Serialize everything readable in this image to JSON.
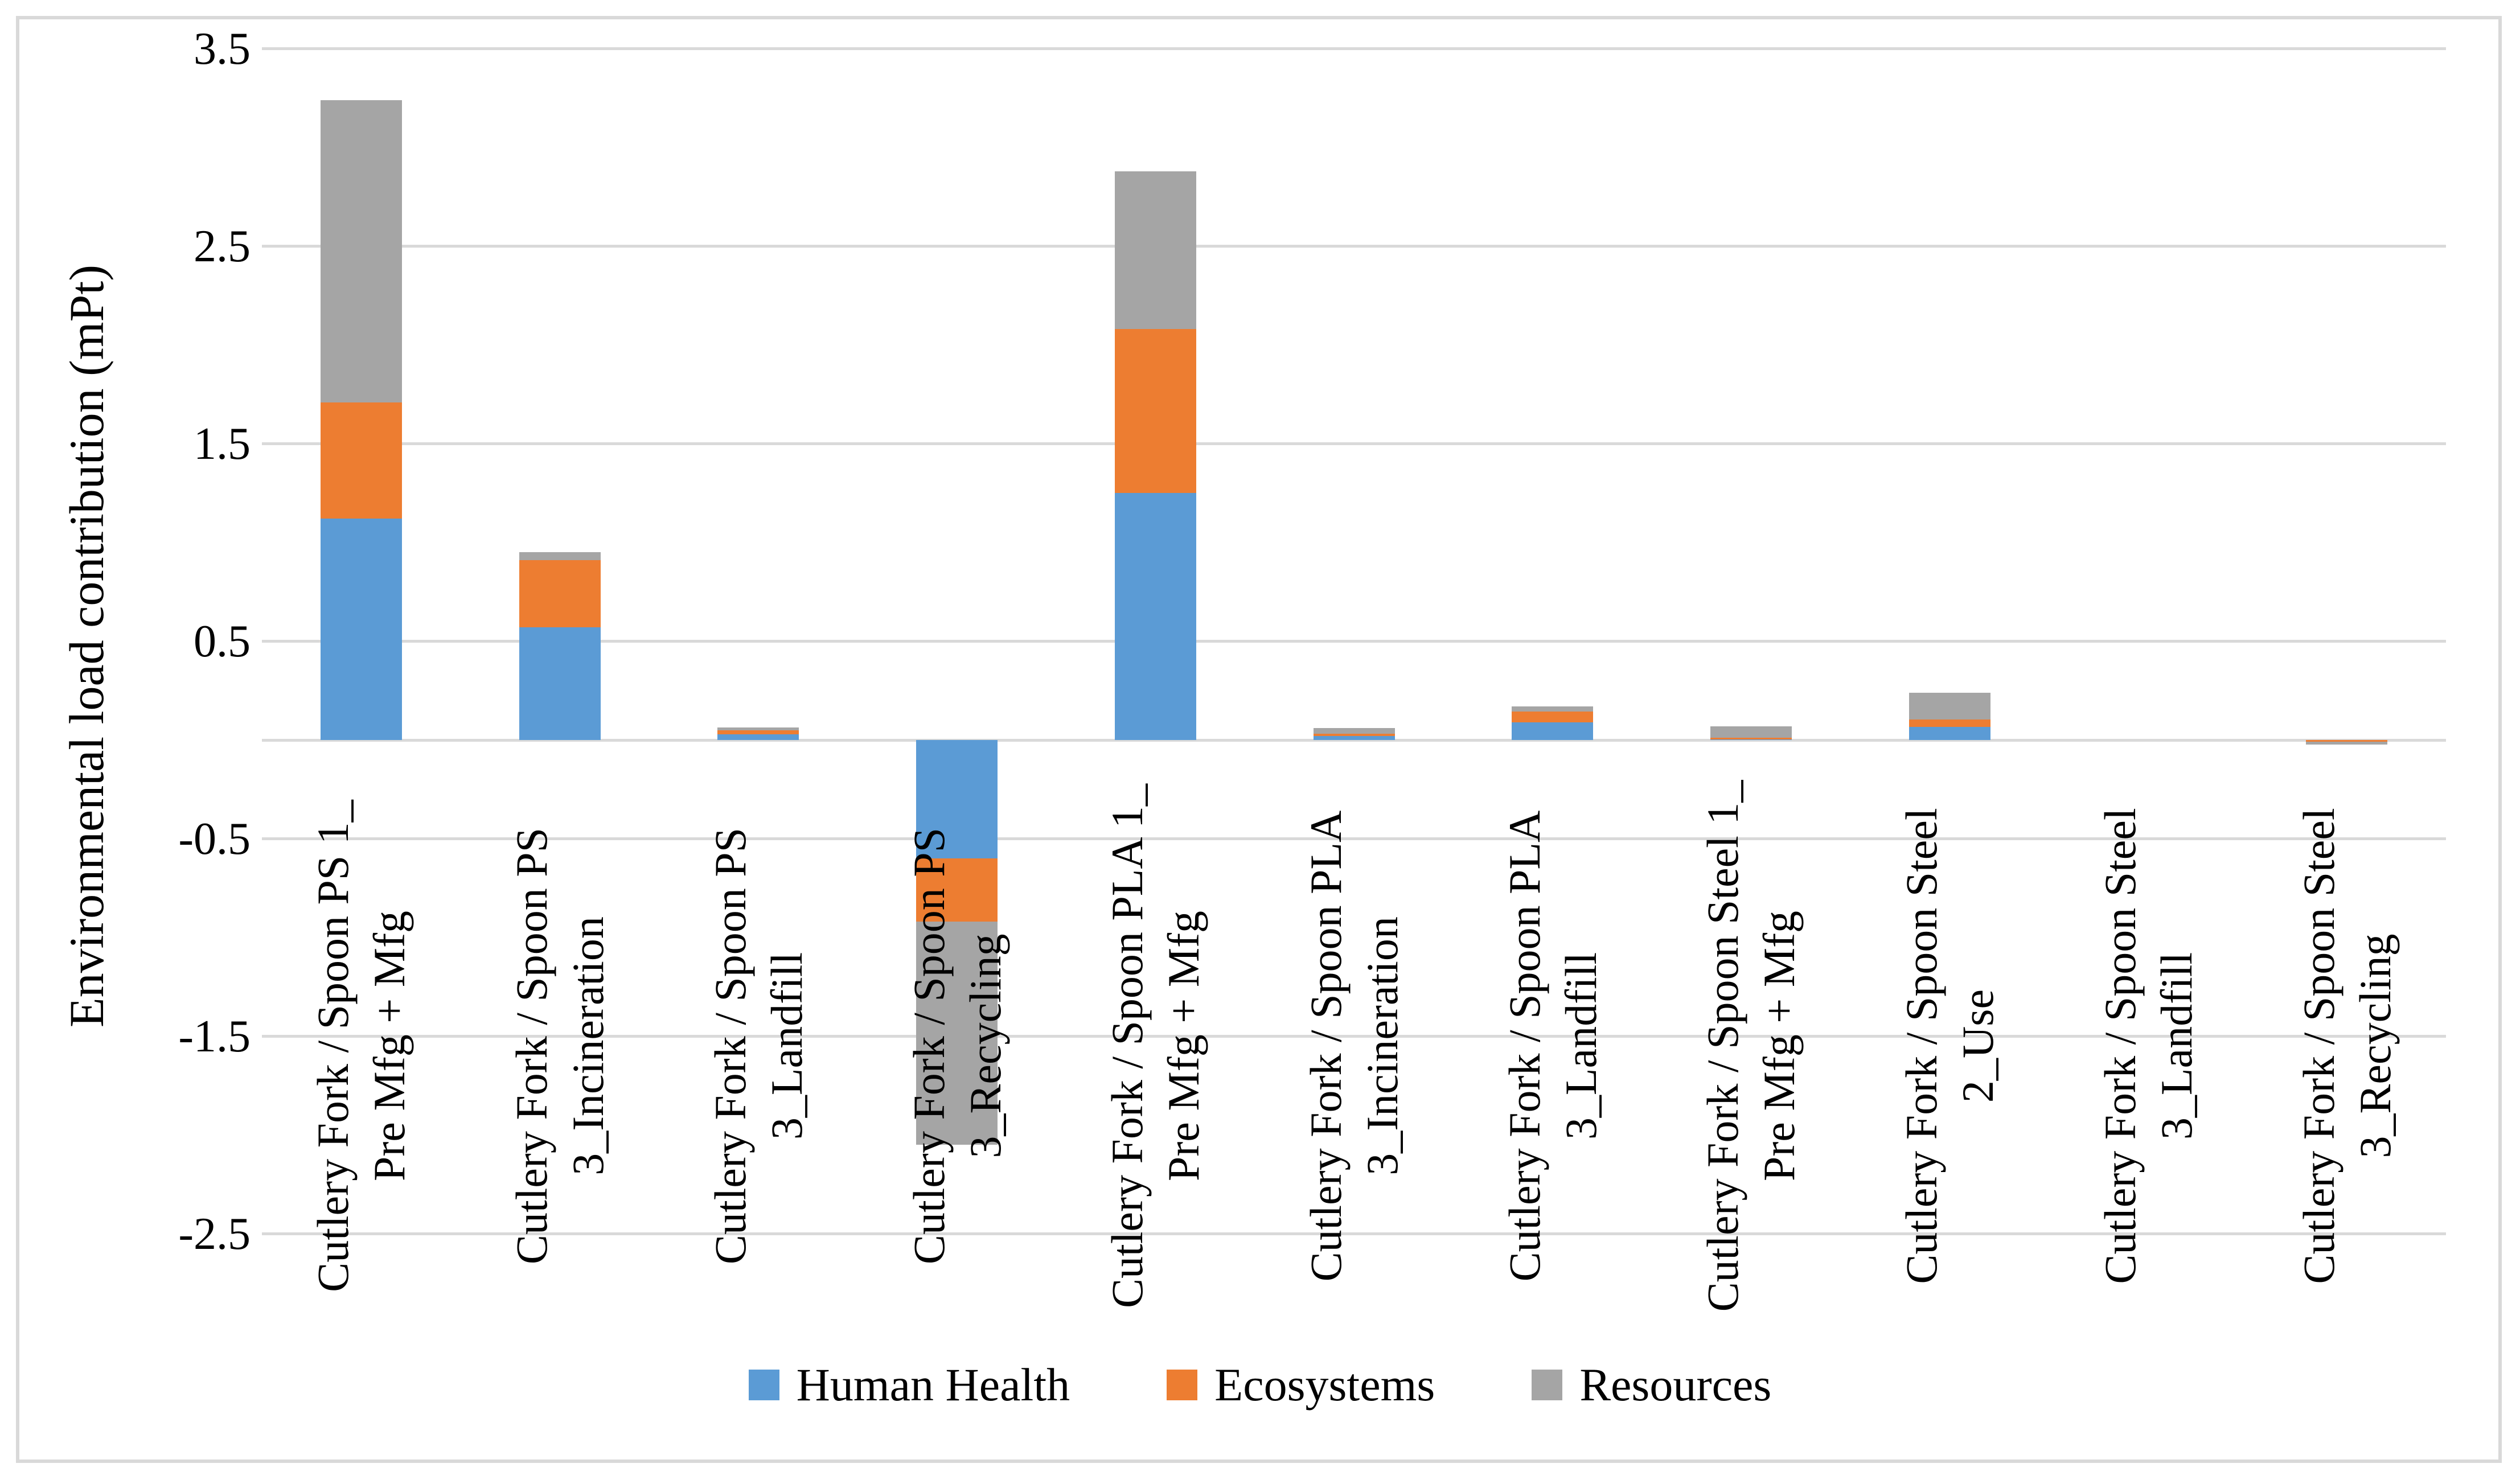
{
  "chart_data": {
    "type": "bar",
    "stacked": true,
    "title": "",
    "xlabel": "",
    "ylabel": "Environmental load contribution (mPt)",
    "ylim": [
      -2.5,
      3.5
    ],
    "yticks": [
      {
        "value": 3.5,
        "label": "3.5"
      },
      {
        "value": 2.5,
        "label": "2.5"
      },
      {
        "value": 1.5,
        "label": "1.5"
      },
      {
        "value": 0.5,
        "label": "0.5"
      },
      {
        "value": -0.5,
        "label": "-0.5"
      },
      {
        "value": -1.5,
        "label": "-1.5"
      },
      {
        "value": -2.5,
        "label": "-2.5"
      }
    ],
    "grid": true,
    "zero_axis_line": true,
    "legend_position": "bottom",
    "categories": [
      {
        "line1": "Cutlery Fork / Spoon PS 1_",
        "line2": "Pre Mfg + Mfg"
      },
      {
        "line1": "Cutlery Fork / Spoon PS",
        "line2": "3_Incineration"
      },
      {
        "line1": "Cutlery Fork / Spoon PS",
        "line2": "3_Landfill"
      },
      {
        "line1": "Cutlery Fork / Spoon PS",
        "line2": "3_Recycling"
      },
      {
        "line1": "Cutlery Fork / Spoon PLA 1_",
        "line2": "Pre Mfg + Mfg"
      },
      {
        "line1": "Cutlery Fork / Spoon PLA",
        "line2": "3_Incineration"
      },
      {
        "line1": "Cutlery Fork / Spoon PLA",
        "line2": "3_Landfill"
      },
      {
        "line1": "Cutlery Fork / Spoon Steel 1_",
        "line2": "Pre Mfg + Mfg"
      },
      {
        "line1": "Cutlery Fork / Spoon Steel",
        "line2": "2_Use"
      },
      {
        "line1": "Cutlery Fork / Spoon Steel",
        "line2": "3_Landfill"
      },
      {
        "line1": "Cutlery Fork / Spoon Steel",
        "line2": "3_Recycling"
      }
    ],
    "series": [
      {
        "name": "Human Health",
        "color": "#5B9BD5",
        "values": [
          1.12,
          0.57,
          0.03,
          -0.6,
          1.25,
          0.02,
          0.09,
          0.003,
          0.067,
          0,
          0
        ]
      },
      {
        "name": "Ecosystems",
        "color": "#ED7D31",
        "values": [
          0.59,
          0.34,
          0.02,
          -0.32,
          0.83,
          0.013,
          0.055,
          0.008,
          0.036,
          0,
          -0.01
        ]
      },
      {
        "name": "Resources",
        "color": "#A5A5A5",
        "values": [
          1.53,
          0.04,
          0.012,
          -1.13,
          0.8,
          0.028,
          0.026,
          0.059,
          0.136,
          0,
          -0.012
        ]
      }
    ]
  },
  "style_colors": {
    "gridline": "#D9D9D9",
    "border": "#D9D9D9",
    "text": "#000000",
    "background": "#FFFFFF"
  }
}
